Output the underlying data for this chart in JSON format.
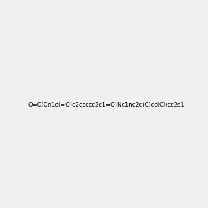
{
  "smiles": "O=C(Cn1c(=O)c2ccccc2c1=O)Nc1nc2c(C)cc(Cl)cc2s1",
  "title": "",
  "background_color": "#f0f0f0",
  "figsize": [
    3.0,
    3.0
  ],
  "dpi": 100
}
